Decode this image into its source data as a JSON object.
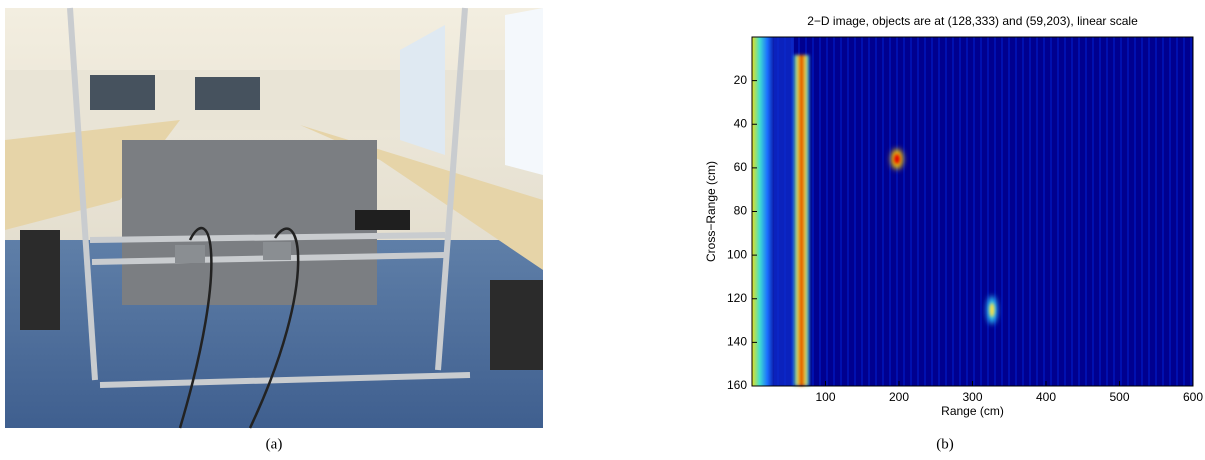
{
  "panel_a": {
    "caption": "(a)"
  },
  "chart_data": {
    "type": "heatmap",
    "title": "2−D image, objects are at (128,333) and (59,203), linear scale",
    "xlabel": "Range (cm)",
    "ylabel": "Cross−Range (cm)",
    "xlim": [
      0,
      600
    ],
    "ylim": [
      0,
      160
    ],
    "y_reversed": true,
    "xticks": [
      100,
      200,
      300,
      400,
      500,
      600
    ],
    "yticks": [
      20,
      40,
      60,
      80,
      100,
      120,
      140,
      160
    ],
    "caption": "(b)"
  }
}
